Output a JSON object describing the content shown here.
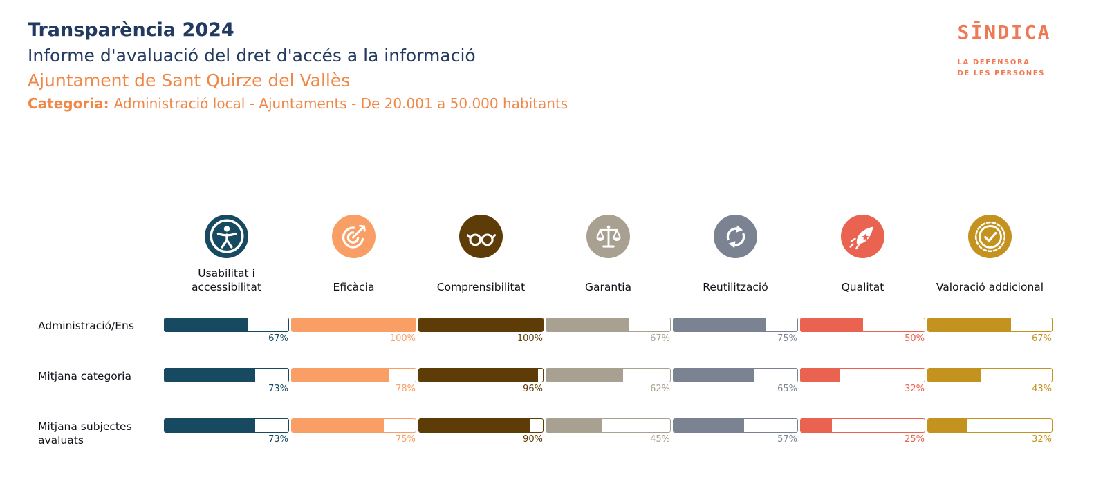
{
  "header": {
    "title": "Transparència 2024",
    "subtitle": "Informe d'avaluació del dret d'accés a la informació",
    "entity": "Ajuntament de Sant Quirze del Vallès",
    "category_label": "Categoria:",
    "category_text": "Administració local - Ajuntaments - De 20.001 a 50.000 habitants"
  },
  "logo": {
    "wordmark": "SĪNDICA",
    "tagline": [
      "LA DEFENSORA",
      "DE LES PERSONES"
    ]
  },
  "colors": {
    "heading_navy": "#233a60",
    "heading_orange": "#ef8747",
    "logo_orange": "#ed7a55"
  },
  "chart_data": {
    "type": "bar",
    "unit": "%",
    "value_range": [
      0,
      100
    ],
    "columns": [
      {
        "label": "Usabilitat i accessibilitat",
        "icon": "accessibility-icon",
        "color": "#174a61"
      },
      {
        "label": "Eficàcia",
        "icon": "target-icon",
        "color": "#f99e65"
      },
      {
        "label": "Comprensibilitat",
        "icon": "glasses-icon",
        "color": "#5e3c08"
      },
      {
        "label": "Garantia",
        "icon": "scales-icon",
        "color": "#a8a091"
      },
      {
        "label": "Reutilització",
        "icon": "recycle-icon",
        "color": "#7b8393"
      },
      {
        "label": "Qualitat",
        "icon": "rocket-icon",
        "color": "#e96350"
      },
      {
        "label": "Valoració addicional",
        "icon": "badge-check-icon",
        "color": "#c4921f"
      }
    ],
    "rows": [
      {
        "label": "Administració/Ens",
        "values": [
          67,
          100,
          100,
          67,
          75,
          50,
          67
        ]
      },
      {
        "label": "Mitjana categoria",
        "values": [
          73,
          78,
          96,
          62,
          65,
          32,
          43
        ]
      },
      {
        "label": "Mitjana subjectes avaluats",
        "values": [
          73,
          75,
          90,
          45,
          57,
          25,
          32
        ]
      }
    ]
  }
}
